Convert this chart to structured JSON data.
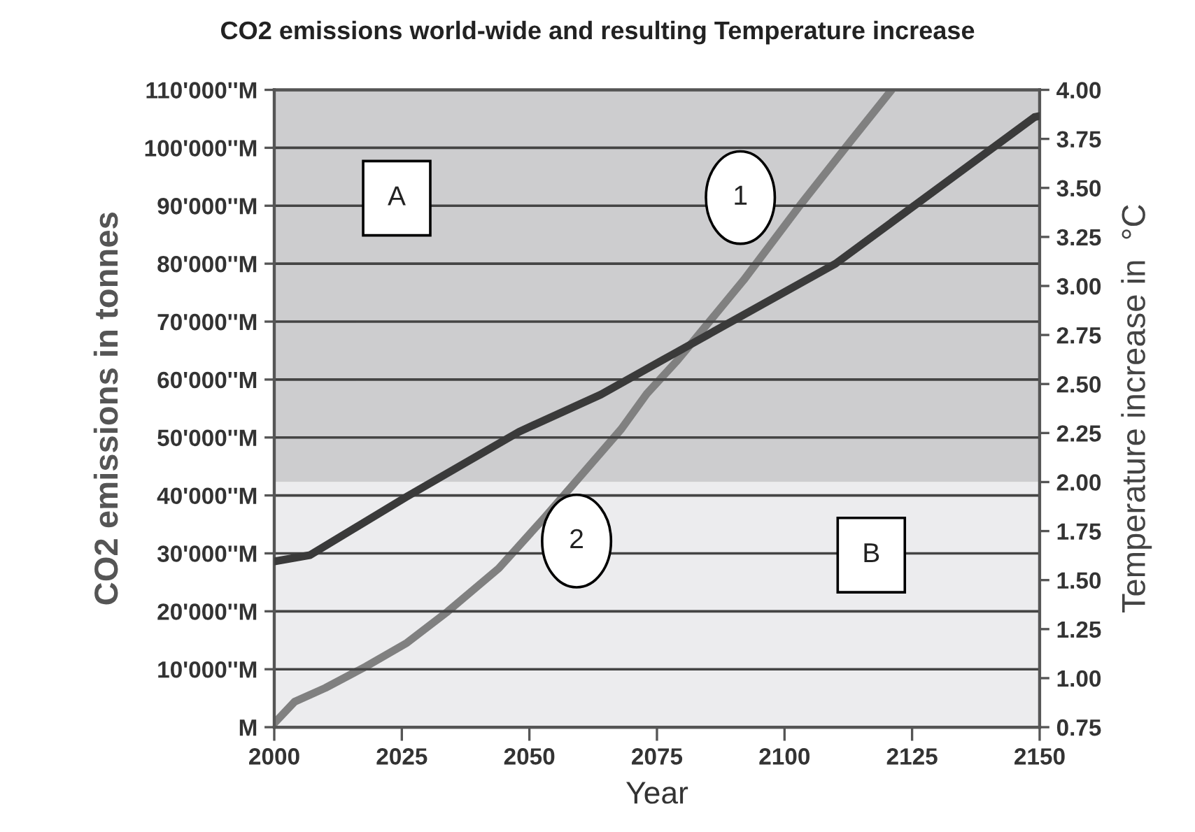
{
  "chart_data": {
    "type": "line",
    "title": "CO2 emissions world-wide and resulting Temperature increase",
    "xlabel": "Year",
    "ylabel": "CO2 emissions in tonnes",
    "y2label": "Temperature increase in  °C",
    "series": [
      {
        "color": "#3a3a3a",
        "x": [
          2000,
          2007,
          2026,
          2048,
          2064,
          2078,
          2110,
          2149,
          2150
        ],
        "values": [
          28600,
          29700,
          39800,
          51000,
          57400,
          64300,
          80000,
          105300,
          105500
        ]
      },
      {
        "axis": "y2",
        "color": "#808080",
        "x": [
          2000,
          2004,
          2010,
          2018,
          2026,
          2034,
          2044,
          2053,
          2060,
          2068,
          2073,
          2079,
          2092,
          2103,
          2113,
          2121
        ],
        "values": [
          0.77,
          0.88,
          0.95,
          1.06,
          1.18,
          1.34,
          1.56,
          1.82,
          2.03,
          2.27,
          2.45,
          2.62,
          3.03,
          3.41,
          3.74,
          4.0
        ]
      }
    ],
    "xlim": [
      2000,
      2150
    ],
    "xticks": [
      2000,
      2025,
      2050,
      2075,
      2100,
      2125,
      2150
    ],
    "ylim": [
      0,
      110000
    ],
    "yticks": [
      {
        "value": 0,
        "label": "M"
      },
      {
        "value": 10000,
        "label": "10'000''M"
      },
      {
        "value": 20000,
        "label": "20'000''M"
      },
      {
        "value": 30000,
        "label": "30'000''M"
      },
      {
        "value": 40000,
        "label": "40'000''M"
      },
      {
        "value": 50000,
        "label": "50'000''M"
      },
      {
        "value": 60000,
        "label": "60'000''M"
      },
      {
        "value": 70000,
        "label": "70'000''M"
      },
      {
        "value": 80000,
        "label": "80'000''M"
      },
      {
        "value": 90000,
        "label": "90'000''M"
      },
      {
        "value": 100000,
        "label": "100'000''M"
      },
      {
        "value": 110000,
        "label": "110'000''M"
      }
    ],
    "y2lim": [
      0.75,
      4.0
    ],
    "y2ticks": [
      {
        "value": 0.75,
        "label": "0.75"
      },
      {
        "value": 1.0,
        "label": "1.00"
      },
      {
        "value": 1.25,
        "label": "1.25"
      },
      {
        "value": 1.5,
        "label": "1.50"
      },
      {
        "value": 1.75,
        "label": "1.75"
      },
      {
        "value": 2.0,
        "label": "2.00"
      },
      {
        "value": 2.25,
        "label": "2.25"
      },
      {
        "value": 2.5,
        "label": "2.50"
      },
      {
        "value": 2.75,
        "label": "2.75"
      },
      {
        "value": 3.0,
        "label": "3.00"
      },
      {
        "value": 3.25,
        "label": "3.25"
      },
      {
        "value": 3.5,
        "label": "3.50"
      },
      {
        "value": 3.75,
        "label": "3.75"
      },
      {
        "value": 4.0,
        "label": "4.00"
      }
    ],
    "bands": [
      {
        "axis": "y2",
        "from": 2.0,
        "to": 4.0,
        "label": "A",
        "color": "#cdcdcf"
      },
      {
        "axis": "y2",
        "from": 0.75,
        "to": 2.0,
        "label": "B",
        "color": "#ececee"
      }
    ],
    "annotations": [
      "1",
      "2"
    ],
    "grid": "y"
  }
}
